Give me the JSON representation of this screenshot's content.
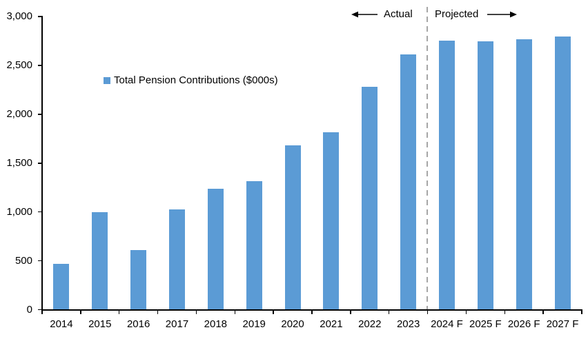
{
  "chart_data": {
    "type": "bar",
    "title": "",
    "legend": "Total Pension Contributions ($000s)",
    "legend_position": "inside-upper-left",
    "categories": [
      "2014",
      "2015",
      "2016",
      "2017",
      "2018",
      "2019",
      "2020",
      "2021",
      "2022",
      "2023",
      "2024 F",
      "2025 F",
      "2026 F",
      "2027 F"
    ],
    "values": [
      470,
      995,
      610,
      1025,
      1240,
      1315,
      1680,
      1815,
      2280,
      2610,
      2755,
      2745,
      2770,
      2795
    ],
    "xlabel": "",
    "ylabel": "",
    "ylim": [
      0,
      3000
    ],
    "ytick_step": 500,
    "ytick_labels": [
      "0",
      "500",
      "1,000",
      "1,500",
      "2,000",
      "2,500",
      "3,000"
    ],
    "grid": false,
    "bar_color": "#5B9BD5",
    "axis_color": "#000000",
    "text_color": "#000000",
    "divider": {
      "after_category_index": 9,
      "style": "dashed",
      "color": "#A6A6A6",
      "left_label": "Actual",
      "right_label": "Projected"
    }
  }
}
